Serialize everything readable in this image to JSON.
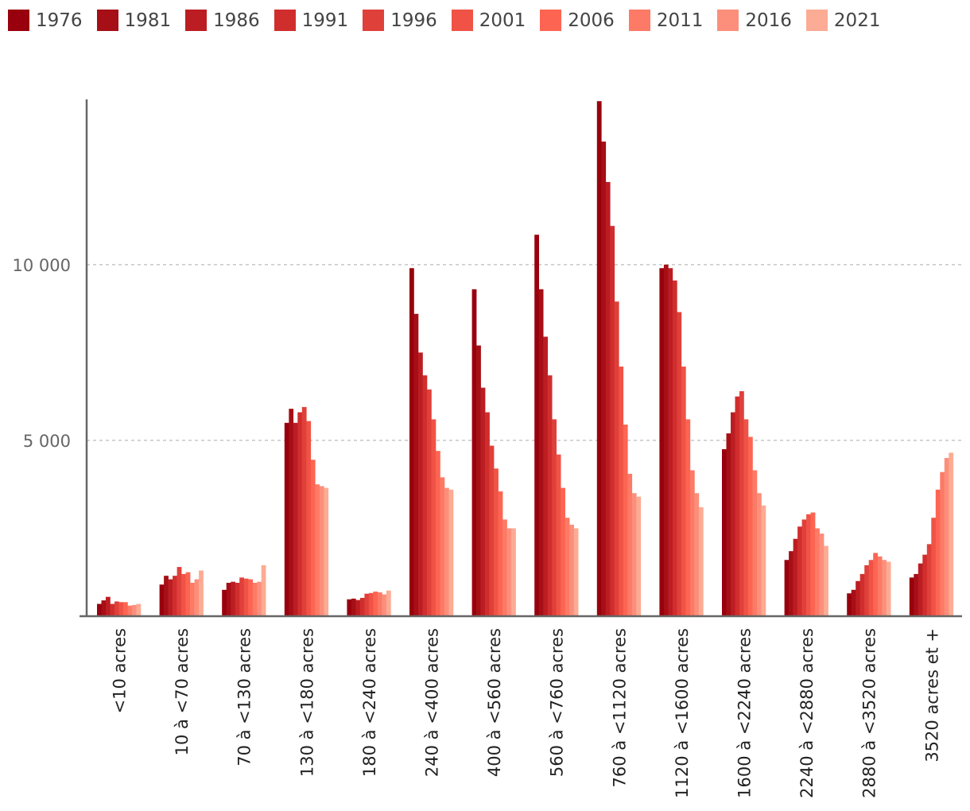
{
  "chart_data": {
    "type": "bar",
    "title": "",
    "xlabel": "",
    "ylabel": "",
    "ylim": [
      0,
      14700
    ],
    "yticks": [
      5000,
      10000
    ],
    "ytick_labels": [
      "5 000",
      "10 000"
    ],
    "grid": "horizontal dashed",
    "legend_position": "top-left",
    "categories": [
      "<10 acres",
      "10 à <70 acres",
      "70 à <130 acres",
      "130 à <180 acres",
      "180 à <240 acres",
      "240 à <400 acres",
      "400 à <560 acres",
      "560 à <760 acres",
      "760 à <1120 acres",
      "1120 à <1600 acres",
      "1600 à <2240 acres",
      "2240 à <2880 acres",
      "2880 à <3520 acres",
      "3520 acres et +"
    ],
    "series": [
      {
        "name": "1976",
        "color": "#99000d",
        "values": [
          350,
          900,
          750,
          5500,
          480,
          9900,
          9300,
          10850,
          14650,
          9900,
          4750,
          1600,
          650,
          1100
        ]
      },
      {
        "name": "1981",
        "color": "#a50f15",
        "values": [
          450,
          1150,
          950,
          5900,
          500,
          8600,
          7700,
          9300,
          13500,
          10000,
          5200,
          1850,
          750,
          1200
        ]
      },
      {
        "name": "1986",
        "color": "#bb1d23",
        "values": [
          550,
          1050,
          980,
          5500,
          460,
          7500,
          6500,
          7950,
          12350,
          9900,
          5800,
          2200,
          1000,
          1500
        ]
      },
      {
        "name": "1991",
        "color": "#d02e2d",
        "values": [
          350,
          1150,
          950,
          5800,
          520,
          6850,
          5800,
          6850,
          11100,
          9550,
          6250,
          2550,
          1200,
          1750
        ]
      },
      {
        "name": "1996",
        "color": "#e0403a",
        "values": [
          420,
          1400,
          1100,
          5950,
          640,
          6450,
          4850,
          5600,
          8950,
          8650,
          6400,
          2750,
          1450,
          2050
        ]
      },
      {
        "name": "2001",
        "color": "#f05345",
        "values": [
          400,
          1200,
          1070,
          5550,
          660,
          5600,
          4200,
          4600,
          7100,
          7100,
          5600,
          2900,
          1600,
          2800
        ]
      },
      {
        "name": "2006",
        "color": "#fd6552",
        "values": [
          400,
          1250,
          1050,
          4450,
          700,
          4700,
          3550,
          3650,
          5450,
          5600,
          5100,
          2950,
          1800,
          3600
        ]
      },
      {
        "name": "2011",
        "color": "#fc7a66",
        "values": [
          300,
          950,
          950,
          3750,
          680,
          3950,
          2750,
          2800,
          4050,
          4150,
          4150,
          2500,
          1700,
          4100
        ]
      },
      {
        "name": "2016",
        "color": "#fc8f7b",
        "values": [
          320,
          1050,
          980,
          3700,
          620,
          3650,
          2500,
          2600,
          3500,
          3500,
          3500,
          2350,
          1600,
          4500
        ]
      },
      {
        "name": "2021",
        "color": "#fcab94",
        "values": [
          350,
          1300,
          1450,
          3650,
          730,
          3600,
          2500,
          2500,
          3400,
          3100,
          3150,
          2000,
          1550,
          4650
        ]
      }
    ]
  }
}
